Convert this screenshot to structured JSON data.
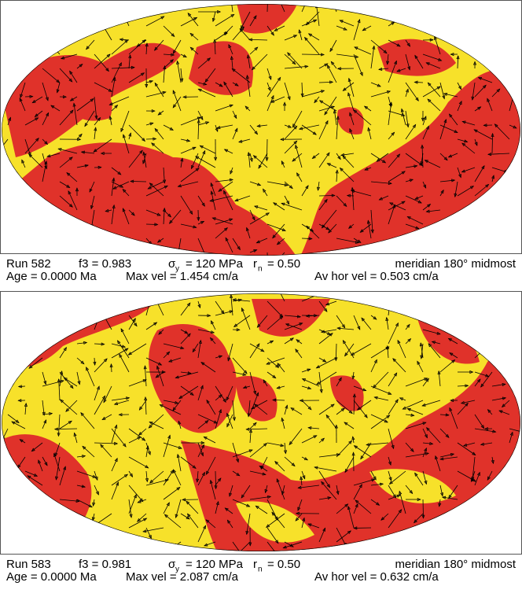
{
  "panels": [
    {
      "run": "Run 582",
      "f3": "f3 = 0.983",
      "sigma": "σ",
      "sigma_sub": "y",
      "sigma_val": "= 120 MPa",
      "r": "r",
      "r_sub": "n",
      "r_val": "= 0.50",
      "meridian": "meridian 180° midmost",
      "age": "Age = 0.0000 Ma",
      "max_vel": "Max vel = 1.454 cm/a",
      "av_vel": "Av hor vel = 0.503 cm/a"
    },
    {
      "run": "Run 583",
      "f3": "f3 = 0.981",
      "sigma": "σ",
      "sigma_sub": "y",
      "sigma_val": "= 120 MPa",
      "r": "r",
      "r_sub": "n",
      "r_val": "= 0.50",
      "meridian": "meridian 180° midmost",
      "age": "Age = 0.0000 Ma",
      "max_vel": "Max vel = 2.087 cm/a",
      "av_vel": "Av hor vel = 0.632 cm/a"
    }
  ]
}
